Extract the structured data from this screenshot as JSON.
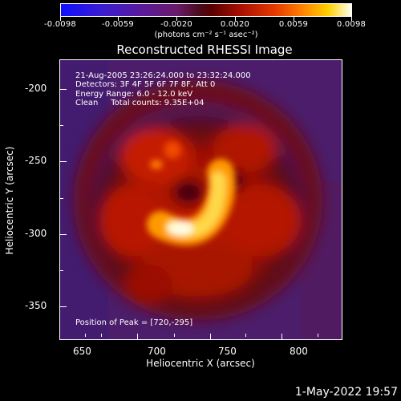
{
  "colorbar": {
    "labels": [
      "-0.0098",
      "-0.0059",
      "-0.0020",
      "0.0020",
      "0.0059",
      "0.0098"
    ],
    "units": "(photons cm⁻² s⁻¹ asec⁻²)"
  },
  "title": "Reconstructed RHESSI Image",
  "info": {
    "time": "21-Aug-2005 23:26:24.000 to 23:32:24.000",
    "detectors": "Detectors: 3F 4F 5F 6F 7F 8F, Att 0",
    "energy": "Energy Range: 6.0 - 12.0 keV",
    "clean": "Clean     Total counts: 9.35E+04",
    "peak": "Position of Peak = [720,-295]"
  },
  "axes": {
    "xlabel": "Heliocentric X (arcsec)",
    "ylabel": "Heliocentric Y (arcsec)",
    "xticks": [
      "650",
      "700",
      "750",
      "800"
    ],
    "yticks": [
      "-200",
      "-250",
      "-300",
      "-350"
    ]
  },
  "chart_data": {
    "type": "heatmap",
    "title": "Reconstructed RHESSI Image",
    "xlabel": "Heliocentric X (arcsec)",
    "ylabel": "Heliocentric Y (arcsec)",
    "xlim": [
      631,
      825
    ],
    "ylim": [
      -371,
      -177
    ],
    "xticks": [
      650,
      700,
      750,
      800
    ],
    "yticks": [
      -200,
      -250,
      -300,
      -350
    ],
    "colorbar_range": [
      -0.0098,
      0.0098
    ],
    "peak": [
      720,
      -295
    ],
    "colormap": "blue-purple-red-yellow-white"
  },
  "footer": {
    "date": "1-May-2022 19:57"
  }
}
